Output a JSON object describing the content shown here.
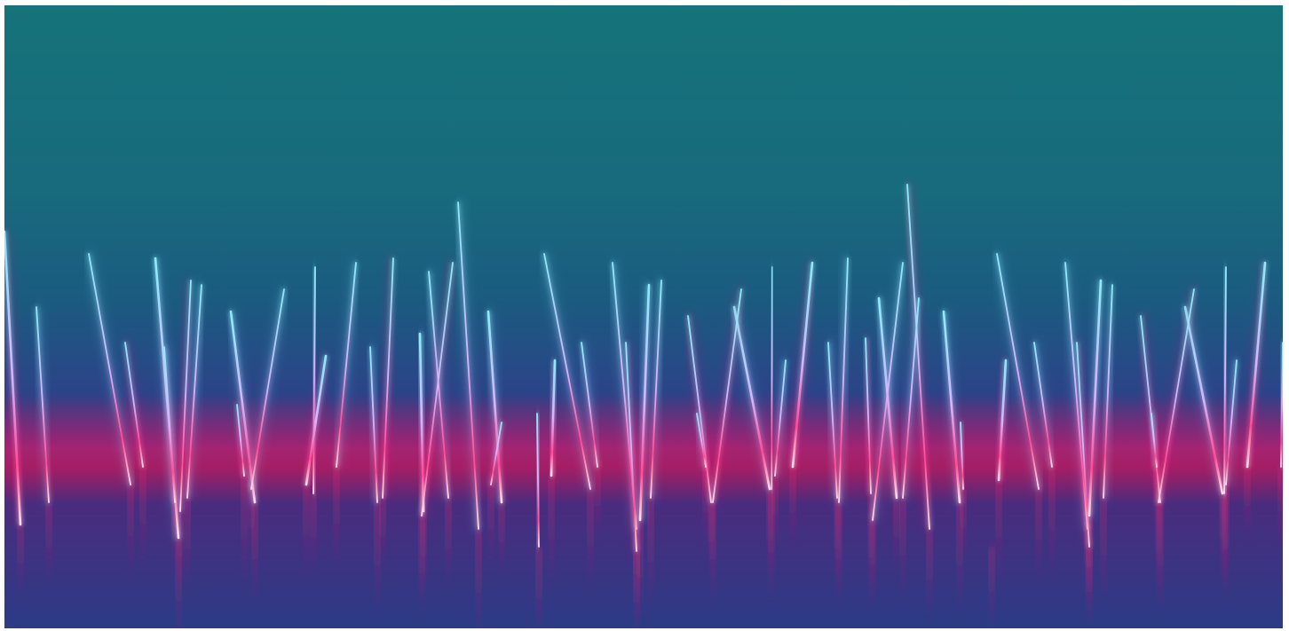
{
  "image": {
    "subject": "neon-light-streaks",
    "palette": {
      "sky_top": "#15737a",
      "sky_mid": "#1a5f7f",
      "horizon": "#3a3a8c",
      "floor_glow": "#b0166b",
      "floor_dark": "#2a2f7a",
      "streak_tip": "#7fe8ff",
      "streak_mid": "#c9a6ff",
      "streak_base": "#ff2a7a",
      "streak_core": "#ffffff"
    }
  }
}
